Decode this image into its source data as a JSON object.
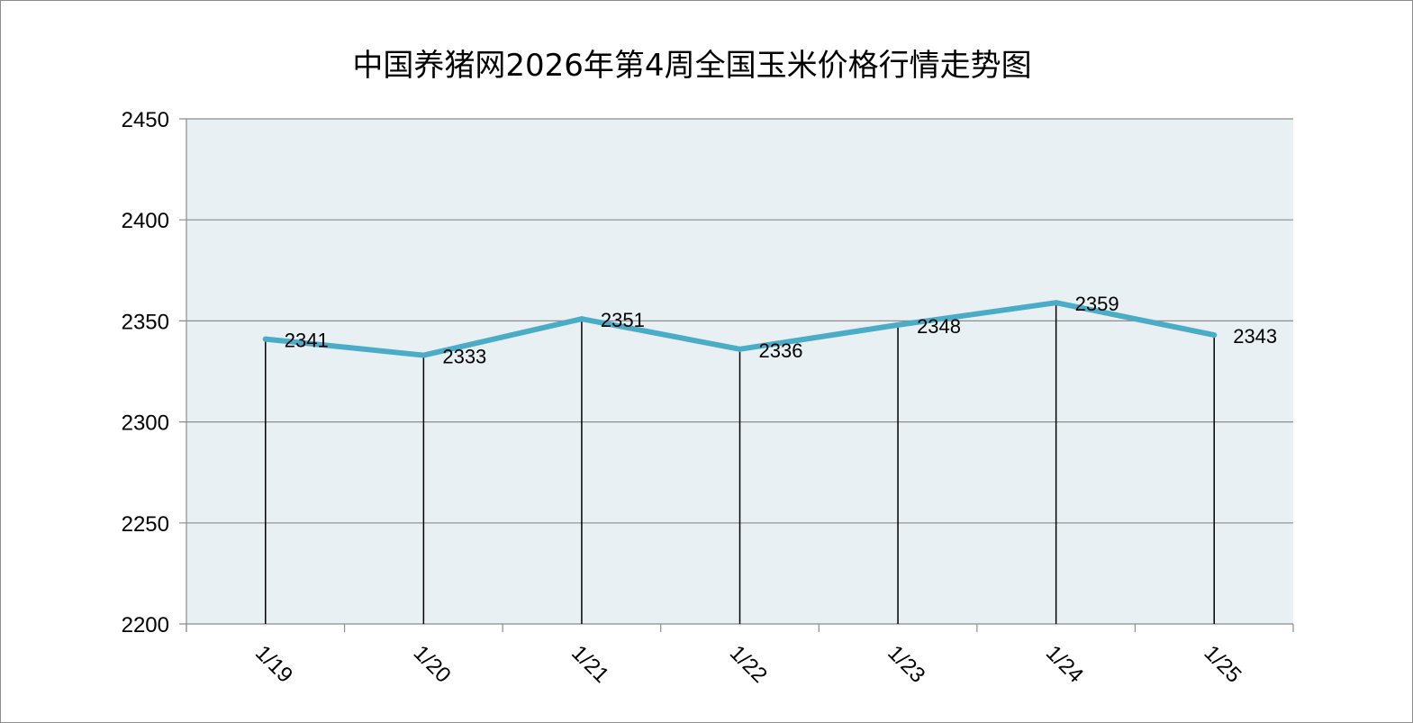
{
  "chart_data": {
    "type": "line",
    "title": "中国养猪网2026年第4周全国玉米价格行情走势图",
    "categories": [
      "1/19",
      "1/20",
      "1/21",
      "1/22",
      "1/23",
      "1/24",
      "1/25"
    ],
    "series": [
      {
        "values": [
          2341,
          2333,
          2351,
          2336,
          2348,
          2359,
          2343
        ]
      }
    ],
    "data_labels": [
      "2341",
      "2333",
      "2351",
      "2336",
      "2348",
      "2359",
      "2343"
    ],
    "ylim": [
      2200,
      2450
    ],
    "yticks": [
      2200,
      2250,
      2300,
      2350,
      2400,
      2450
    ],
    "ytick_labels": [
      "2200",
      "2250",
      "2300",
      "2350",
      "2400",
      "2450"
    ],
    "xlabel": "",
    "ylabel": "",
    "grid": true,
    "drop_lines": true,
    "colors": {
      "line": "#4bacc6",
      "plot_background": "#e8f0f4",
      "gridline": "#8c8c8c",
      "drop_line": "#000000"
    }
  }
}
